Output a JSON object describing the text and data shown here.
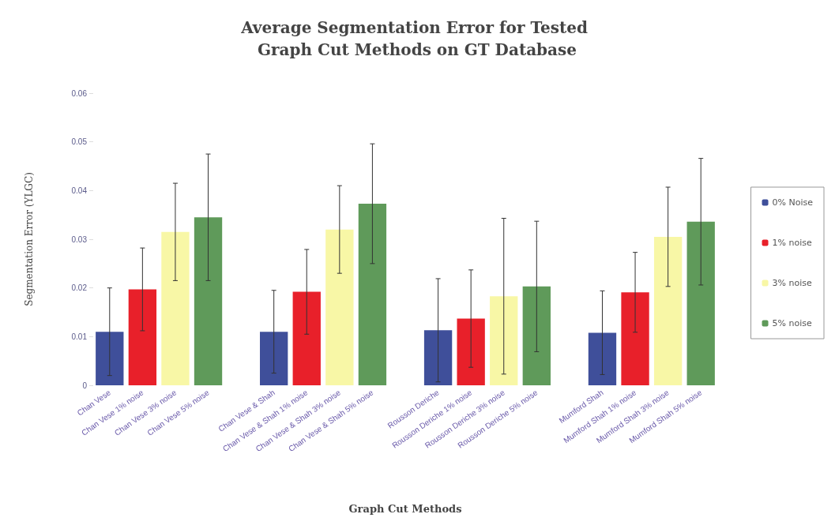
{
  "chart_data": {
    "type": "bar",
    "title": "Average Segmentation Error for Tested Graph Cut Methods on GT Database",
    "xlabel": "Graph Cut Methods",
    "ylabel": "Segmentation Error (YLGC)",
    "categories": [
      "Chan Vese",
      "Chan Vese 1% noise",
      "Chan Vese 3% noise",
      "Chan Vese 5% noise",
      null,
      "Chan Vese & Shah",
      "Chan Vese & Shah 1% noise",
      "Chan Vese & Shah 3% noise",
      "Chan Vese & Shah 5% noise",
      null,
      "Rousson Deriche",
      "Rousson Deriche 1% noise",
      "Rousson Deriche 3% noise",
      "Rousson Deriche 5% noise",
      null,
      "Mumford Shah",
      "Mumford Shah 1% noise",
      "Mumford Shah 3% noise",
      "Mumford Shah 5% noise"
    ],
    "series": [
      {
        "name": "0% Noise",
        "color": "#3f4f9a",
        "values": [
          0.011,
          null,
          null,
          null,
          null,
          0.011,
          null,
          null,
          null,
          null,
          0.0113,
          null,
          null,
          null,
          null,
          0.0108,
          null,
          null,
          null
        ],
        "errors": [
          0.009,
          null,
          null,
          null,
          null,
          0.0085,
          null,
          null,
          null,
          null,
          0.0106,
          null,
          null,
          null,
          null,
          0.0086,
          null,
          null,
          null
        ]
      },
      {
        "name": "1% noise",
        "color": "#e8202a",
        "values": [
          null,
          0.0197,
          null,
          null,
          null,
          null,
          0.0192,
          null,
          null,
          null,
          null,
          0.0137,
          null,
          null,
          null,
          null,
          0.0191,
          null,
          null
        ],
        "errors": [
          null,
          0.0085,
          null,
          null,
          null,
          null,
          0.0087,
          null,
          null,
          null,
          null,
          0.01,
          null,
          null,
          null,
          null,
          0.0082,
          null,
          null
        ]
      },
      {
        "name": "3% noise",
        "color": "#f8f7a6",
        "values": [
          null,
          null,
          0.0315,
          null,
          null,
          null,
          null,
          0.032,
          null,
          null,
          null,
          null,
          0.0183,
          null,
          null,
          null,
          null,
          0.0305,
          null
        ],
        "errors": [
          null,
          null,
          0.01,
          null,
          null,
          null,
          null,
          0.009,
          null,
          null,
          null,
          null,
          0.016,
          null,
          null,
          null,
          null,
          0.0102,
          null
        ]
      },
      {
        "name": "5% noise",
        "color": "#5f9a5a",
        "values": [
          null,
          null,
          null,
          0.0345,
          null,
          null,
          null,
          null,
          0.0373,
          null,
          null,
          null,
          null,
          0.0203,
          null,
          null,
          null,
          null,
          0.0336
        ],
        "errors": [
          null,
          null,
          null,
          0.013,
          null,
          null,
          null,
          null,
          0.0123,
          null,
          null,
          null,
          null,
          0.0134,
          null,
          null,
          null,
          null,
          0.013
        ]
      }
    ],
    "ylim": [
      0,
      0.06
    ],
    "yticks": [
      0,
      0.01,
      0.02,
      0.03,
      0.04,
      0.05,
      0.06
    ],
    "grid": false,
    "legend": "right"
  }
}
